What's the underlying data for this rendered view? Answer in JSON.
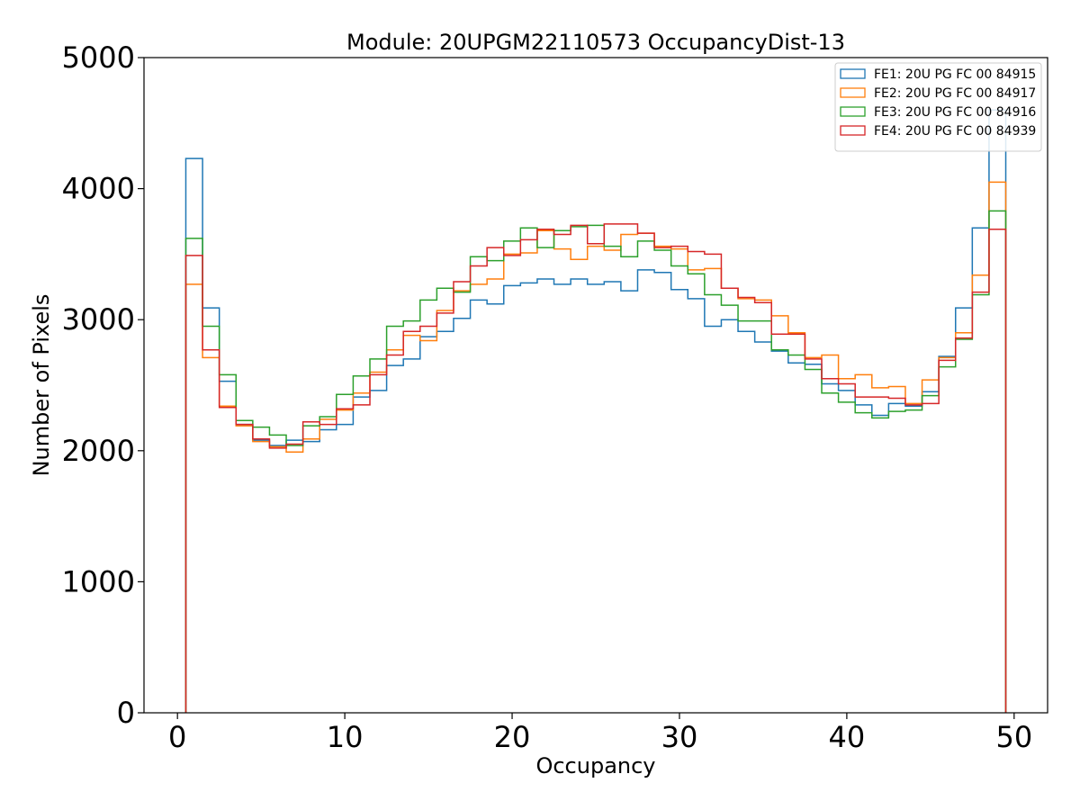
{
  "chart_data": {
    "type": "step-histogram",
    "title": "Module: 20UPGM22110573 OccupancyDist-13",
    "xlabel": "Occupancy",
    "ylabel": "Number of Pixels",
    "xlim": [
      -2,
      52
    ],
    "ylim": [
      0,
      5000
    ],
    "xticks": [
      0,
      10,
      20,
      30,
      40,
      50
    ],
    "yticks": [
      0,
      1000,
      2000,
      3000,
      4000,
      5000
    ],
    "grid": false,
    "legend_position": "top-right",
    "bin_edges": [
      0.5,
      1.5,
      2.5,
      3.5,
      4.5,
      5.5,
      6.5,
      7.5,
      8.5,
      9.5,
      10.5,
      11.5,
      12.5,
      13.5,
      14.5,
      15.5,
      16.5,
      17.5,
      18.5,
      19.5,
      20.5,
      21.5,
      22.5,
      23.5,
      24.5,
      25.5,
      26.5,
      27.5,
      28.5,
      29.5,
      30.5,
      31.5,
      32.5,
      33.5,
      34.5,
      35.5,
      36.5,
      37.5,
      38.5,
      39.5,
      40.5,
      41.5,
      42.5,
      43.5,
      44.5,
      45.5,
      46.5,
      47.5,
      48.5,
      49.5
    ],
    "series": [
      {
        "name": "FE1: 20U PG FC 00 84915",
        "color": "#1f77b4",
        "values": [
          4230,
          3090,
          2530,
          2200,
          2080,
          2040,
          2080,
          2070,
          2160,
          2200,
          2410,
          2460,
          2650,
          2700,
          2870,
          2910,
          3010,
          3150,
          3120,
          3260,
          3280,
          3310,
          3270,
          3310,
          3270,
          3290,
          3220,
          3380,
          3360,
          3230,
          3160,
          2950,
          3000,
          2910,
          2830,
          2760,
          2670,
          2660,
          2510,
          2460,
          2350,
          2270,
          2360,
          2340,
          2450,
          2720,
          3090,
          3700,
          4600
        ]
      },
      {
        "name": "FE2: 20U PG FC 00 84917",
        "color": "#ff7f0e",
        "values": [
          3270,
          2710,
          2340,
          2190,
          2070,
          2030,
          1990,
          2090,
          2240,
          2310,
          2440,
          2600,
          2770,
          2880,
          2840,
          3070,
          3220,
          3270,
          3310,
          3500,
          3510,
          3680,
          3540,
          3460,
          3560,
          3530,
          3650,
          3660,
          3560,
          3540,
          3380,
          3390,
          3240,
          3160,
          3150,
          3030,
          2900,
          2710,
          2730,
          2550,
          2580,
          2480,
          2490,
          2360,
          2540,
          2710,
          2900,
          3340,
          4050
        ]
      },
      {
        "name": "FE3: 20U PG FC 00 84916",
        "color": "#2ca02c",
        "values": [
          3620,
          2950,
          2580,
          2230,
          2180,
          2120,
          2040,
          2190,
          2260,
          2430,
          2570,
          2700,
          2950,
          2990,
          3150,
          3240,
          3210,
          3480,
          3450,
          3600,
          3700,
          3550,
          3680,
          3710,
          3720,
          3560,
          3480,
          3600,
          3530,
          3410,
          3350,
          3190,
          3110,
          2990,
          2990,
          2770,
          2730,
          2620,
          2440,
          2370,
          2290,
          2250,
          2300,
          2310,
          2420,
          2640,
          2850,
          3190,
          3830
        ]
      },
      {
        "name": "FE4: 20U PG FC 00 84939",
        "color": "#d62728",
        "values": [
          3490,
          2770,
          2330,
          2200,
          2090,
          2020,
          2050,
          2220,
          2200,
          2320,
          2350,
          2580,
          2730,
          2910,
          2950,
          3050,
          3290,
          3410,
          3550,
          3490,
          3610,
          3690,
          3650,
          3720,
          3580,
          3730,
          3730,
          3660,
          3550,
          3560,
          3520,
          3500,
          3240,
          3170,
          3130,
          2890,
          2890,
          2700,
          2550,
          2510,
          2410,
          2410,
          2400,
          2350,
          2360,
          2690,
          2860,
          3210,
          3690
        ]
      }
    ]
  }
}
